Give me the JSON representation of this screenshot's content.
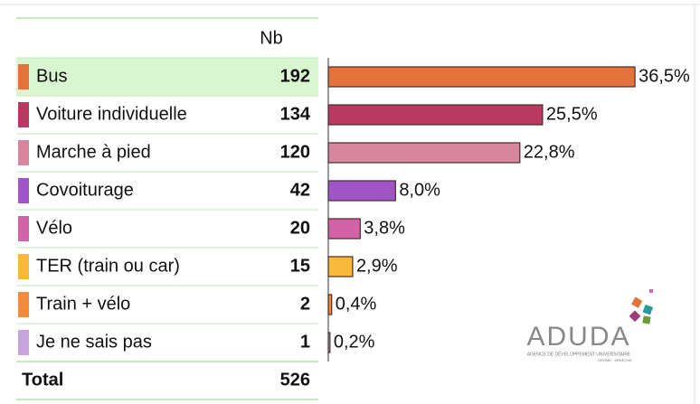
{
  "chart_data": {
    "type": "bar",
    "column_header": "Nb",
    "categories": [
      "Bus",
      "Voiture individuelle",
      "Marche à pied",
      "Covoiturage",
      "Vélo",
      "TER (train ou car)",
      "Train + vélo",
      "Je ne sais pas"
    ],
    "counts": [
      192,
      134,
      120,
      42,
      20,
      15,
      2,
      1
    ],
    "values": [
      36.5,
      25.5,
      22.8,
      8.0,
      3.8,
      2.9,
      0.4,
      0.2
    ],
    "value_labels": [
      "36,5%",
      "25,5%",
      "22,8%",
      "8,0%",
      "3,8%",
      "2,9%",
      "0,4%",
      "0,2%"
    ],
    "colors": [
      "#e3733a",
      "#b83a62",
      "#d6869f",
      "#9f55c6",
      "#d363a6",
      "#f8b93a",
      "#f18a3a",
      "#c9a3db"
    ],
    "highlight": 0,
    "total_label": "Total",
    "total": 526,
    "logo": {
      "name": "ADUDA",
      "line1": "AGENCE DE DÉVELOPPEMENT UNIVERSITAIRE",
      "line2": "DRÔME · ARDÈCHE"
    }
  }
}
